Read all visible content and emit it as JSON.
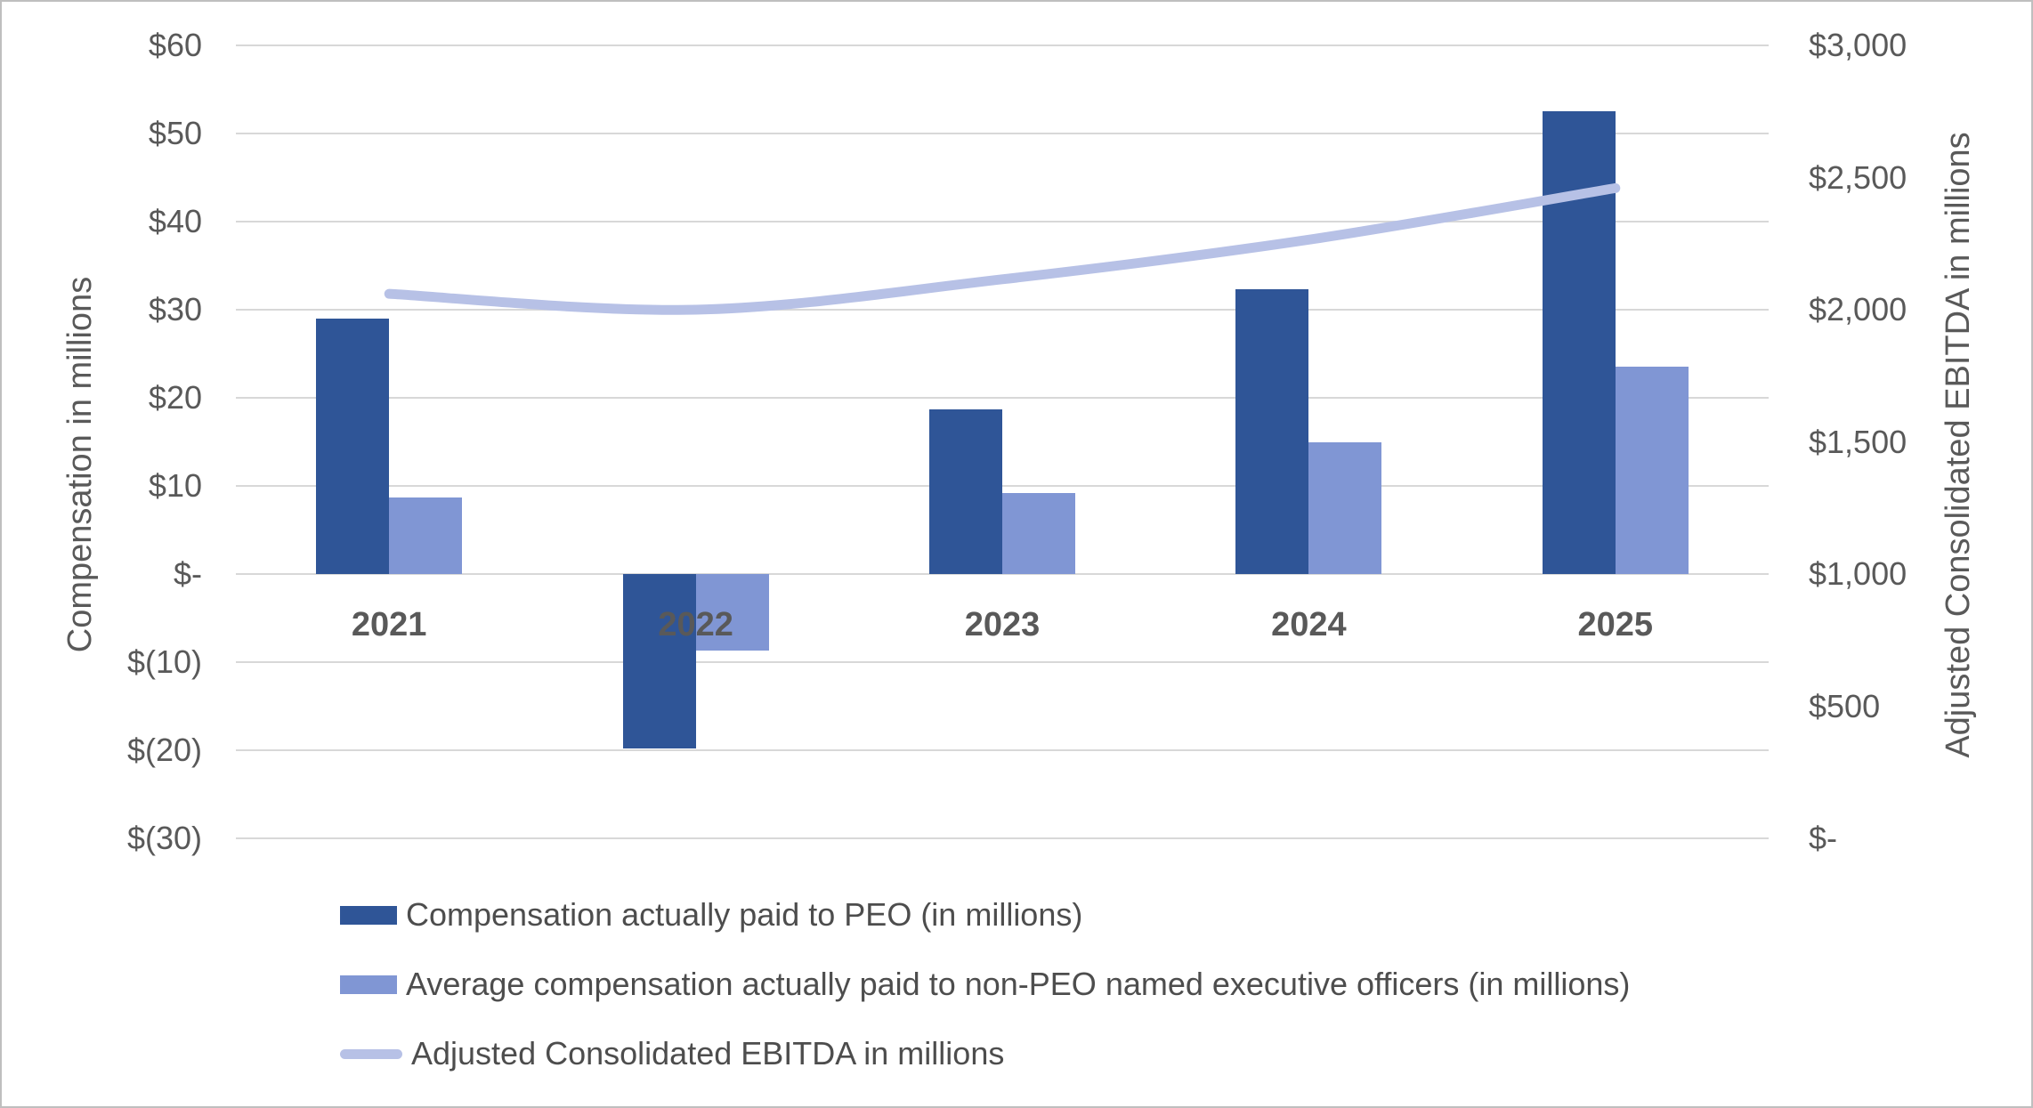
{
  "chart_data": {
    "type": "combo-bar-line",
    "categories": [
      "2021",
      "2022",
      "2023",
      "2024",
      "2025"
    ],
    "series": [
      {
        "name": "Compensation actually paid to PEO (in millions)",
        "type": "bar",
        "axis": "left",
        "color": "#2f5597",
        "values": [
          29.0,
          -19.8,
          18.7,
          32.3,
          52.5
        ]
      },
      {
        "name": "Average compensation actually paid to non-PEO named executive officers (in millions)",
        "type": "bar",
        "axis": "left",
        "color": "#8096d4",
        "values": [
          8.7,
          -8.7,
          9.2,
          15.0,
          23.5
        ]
      },
      {
        "name": "Adjusted Consolidated EBITDA in millions",
        "type": "line",
        "axis": "right",
        "color": "#b7c1e6",
        "values": [
          2060,
          2000,
          2115,
          2265,
          2460
        ]
      }
    ],
    "left_axis": {
      "title": "Compensation in millions",
      "min": -30,
      "max": 60,
      "step": 10,
      "tick_labels": [
        "$60",
        "$50",
        "$40",
        "$30",
        "$20",
        "$10",
        "$-",
        "$(10)",
        "$(20)",
        "$(30)"
      ]
    },
    "right_axis": {
      "title": "Adjusted Consolidated EBITDA in millions",
      "min": 0,
      "max": 3000,
      "step": 500,
      "tick_labels": [
        "$3,000",
        "$2,500",
        "$2,000",
        "$1,500",
        "$1,000",
        "$500",
        "$-"
      ]
    },
    "grid": true,
    "legend_position": "bottom",
    "colors": {
      "gridline": "#d8d8d8",
      "axis_text": "#595959",
      "legend_text": "#4d4d4d",
      "background": "#ffffff",
      "border": "#bfbfbf"
    }
  }
}
